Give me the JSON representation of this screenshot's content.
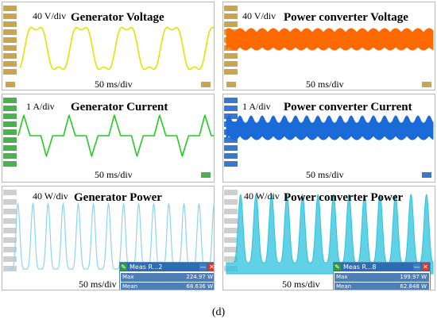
{
  "caption": "(d)",
  "panels": {
    "gen_voltage": {
      "title": "Generator Voltage",
      "vdiv": "40 V/div",
      "tdiv": "50 ms/div",
      "color": "#e8e000"
    },
    "pc_voltage": {
      "title": "Power converter Voltage",
      "vdiv": "40 V/div",
      "tdiv": "50 ms/div",
      "color": "#ff6a00"
    },
    "gen_current": {
      "title": "Generator Current",
      "vdiv": "1 A/div",
      "tdiv": "50 ms/div",
      "color": "#22cc22"
    },
    "pc_current": {
      "title": "Power converter Current",
      "vdiv": "1 A/div",
      "tdiv": "50 ms/div",
      "color": "#1a6bd8"
    },
    "gen_power": {
      "title": "Generator Power",
      "vdiv": "40 W/div",
      "tdiv": "50 ms/div",
      "color": "#8fd4ee",
      "meas": {
        "title": "Meas R...2",
        "max_label": "Max",
        "max_value": "224.97 W",
        "mean_label": "Mean",
        "mean_value": "68.636 W"
      }
    },
    "pc_power": {
      "title": "Power converter Power",
      "vdiv": "40 W/div",
      "tdiv": "50 ms/div",
      "color": "#2cc3dc",
      "meas": {
        "title": "Meas R...8",
        "max_label": "Max",
        "max_value": "199.97 W",
        "mean_label": "Mean",
        "mean_value": "62.848 W"
      }
    }
  },
  "icons": {
    "meas_tool": "wrench-icon",
    "meas_minimize": "minimize-icon",
    "meas_close": "close-icon"
  }
}
